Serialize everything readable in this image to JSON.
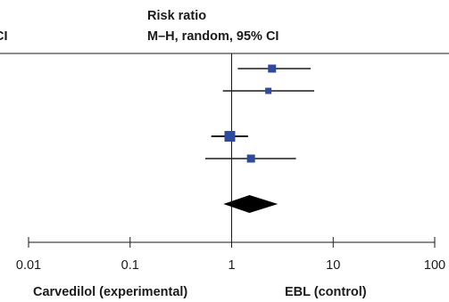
{
  "header": {
    "left_fragment": "CI",
    "title_line1": "Risk ratio",
    "title_line2": "M–H, random, 95% CI"
  },
  "footer": {
    "left_label": "Carvedilol (experimental)",
    "right_label": "EBL (control)"
  },
  "colors": {
    "marker": "#2e4a9e",
    "line": "#1a1a1a",
    "diamond": "#000000"
  },
  "chart_data": {
    "type": "forest",
    "title": "Risk ratio",
    "subtitle": "M–H, random, 95% CI",
    "xscale": "log",
    "xlim": [
      0.01,
      100
    ],
    "xticks": [
      0.01,
      0.1,
      1,
      10,
      100
    ],
    "xtick_labels": [
      "0.01",
      "0.1",
      "1",
      "10",
      "100"
    ],
    "null_line": 1,
    "studies": [
      {
        "rr": 2.5,
        "ci": [
          1.15,
          6.0
        ],
        "weight": "medium"
      },
      {
        "rr": 2.3,
        "ci": [
          0.82,
          6.5
        ],
        "weight": "small"
      },
      {
        "rr": 0.96,
        "ci": [
          0.63,
          1.45
        ],
        "weight": "large"
      },
      {
        "rr": 1.55,
        "ci": [
          0.55,
          4.3
        ],
        "weight": "medium"
      }
    ],
    "pooled": {
      "rr": 1.5,
      "ci": [
        0.83,
        2.85
      ]
    },
    "xlabel_left": "Carvedilol (experimental)",
    "xlabel_right": "EBL (control)"
  }
}
